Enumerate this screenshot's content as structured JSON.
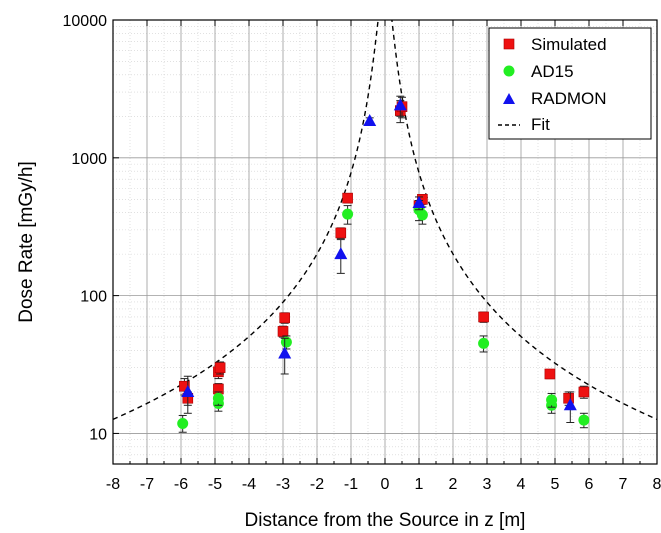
{
  "chart_data": {
    "type": "scatter",
    "xlabel": "Distance from the Source in z [m]",
    "ylabel": "Dose Rate [mGy/h]",
    "xlim": [
      -8,
      8
    ],
    "ylim": [
      6,
      10000
    ],
    "yscale": "log",
    "x_ticks": [
      "-8",
      "-7",
      "-6",
      "-5",
      "-4",
      "-3",
      "-2",
      "-1",
      "0",
      "1",
      "2",
      "3",
      "4",
      "5",
      "6",
      "7",
      "8"
    ],
    "y_ticks": [
      "10",
      "100",
      "1000",
      "10000"
    ],
    "grid": true,
    "legend_position": "top-right",
    "colors": {
      "simulated": "#ee1111",
      "ad15": "#22ee22",
      "radmon": "#1111ee",
      "fit": "#000000"
    },
    "series": [
      {
        "name": "Simulated",
        "marker": "square",
        "points": [
          {
            "x": -5.9,
            "y": 22,
            "lo": 19,
            "hi": 25
          },
          {
            "x": -5.8,
            "y": 18,
            "lo": 16,
            "hi": 20
          },
          {
            "x": -4.9,
            "y": 28,
            "lo": 25,
            "hi": 31
          },
          {
            "x": -4.85,
            "y": 30,
            "lo": 27,
            "hi": 33
          },
          {
            "x": -4.9,
            "y": 21,
            "lo": 19,
            "hi": 23
          },
          {
            "x": -2.95,
            "y": 69,
            "lo": 63,
            "hi": 75
          },
          {
            "x": -3.0,
            "y": 55,
            "lo": 50,
            "hi": 60
          },
          {
            "x": -1.3,
            "y": 285,
            "lo": 260,
            "hi": 310
          },
          {
            "x": -1.1,
            "y": 510,
            "lo": 470,
            "hi": 550
          },
          {
            "x": 0.45,
            "y": 2200,
            "lo": 1800,
            "hi": 2600
          },
          {
            "x": 0.5,
            "y": 2350,
            "lo": 1950,
            "hi": 2750
          },
          {
            "x": 1.0,
            "y": 450,
            "lo": 410,
            "hi": 490
          },
          {
            "x": 1.1,
            "y": 500,
            "lo": 460,
            "hi": 540
          },
          {
            "x": 2.9,
            "y": 70,
            "lo": 64,
            "hi": 76
          },
          {
            "x": 4.85,
            "y": 27,
            "lo": 25,
            "hi": 29
          },
          {
            "x": 5.4,
            "y": 18,
            "lo": 16,
            "hi": 20
          },
          {
            "x": 5.85,
            "y": 20,
            "lo": 18,
            "hi": 22
          }
        ]
      },
      {
        "name": "AD15",
        "marker": "circle",
        "points": [
          {
            "x": -5.95,
            "y": 11.8,
            "lo": 10.2,
            "hi": 13.5
          },
          {
            "x": -4.9,
            "y": 16.5,
            "lo": 14.5,
            "hi": 18.5
          },
          {
            "x": -4.9,
            "y": 18.0,
            "lo": 16.0,
            "hi": 20.0
          },
          {
            "x": -2.9,
            "y": 46,
            "lo": 41,
            "hi": 51
          },
          {
            "x": -1.1,
            "y": 390,
            "lo": 330,
            "hi": 450
          },
          {
            "x": 1.0,
            "y": 420,
            "lo": 350,
            "hi": 490
          },
          {
            "x": 1.1,
            "y": 385,
            "lo": 330,
            "hi": 440
          },
          {
            "x": 2.9,
            "y": 45,
            "lo": 39,
            "hi": 51
          },
          {
            "x": 4.9,
            "y": 16,
            "lo": 14,
            "hi": 18
          },
          {
            "x": 4.9,
            "y": 17.5,
            "lo": 15.5,
            "hi": 19.5
          },
          {
            "x": 5.85,
            "y": 12.5,
            "lo": 11,
            "hi": 14
          }
        ]
      },
      {
        "name": "RADMON",
        "marker": "triangle",
        "points": [
          {
            "x": -5.8,
            "y": 20,
            "lo": 14,
            "hi": 26
          },
          {
            "x": -2.95,
            "y": 38,
            "lo": 27,
            "hi": 49
          },
          {
            "x": -1.3,
            "y": 200,
            "lo": 145,
            "hi": 255
          },
          {
            "x": -0.45,
            "y": 1850,
            "lo": 1750,
            "hi": 1950
          },
          {
            "x": 0.45,
            "y": 2400,
            "lo": 2000,
            "hi": 2800
          },
          {
            "x": 1.0,
            "y": 470,
            "lo": 420,
            "hi": 520
          },
          {
            "x": 5.45,
            "y": 16,
            "lo": 12,
            "hi": 20
          }
        ]
      },
      {
        "name": "Fit",
        "marker": "dashed-line",
        "model": "A / (z^2 + d^2)",
        "params": {
          "A": 810,
          "d": 0.2
        }
      }
    ]
  }
}
